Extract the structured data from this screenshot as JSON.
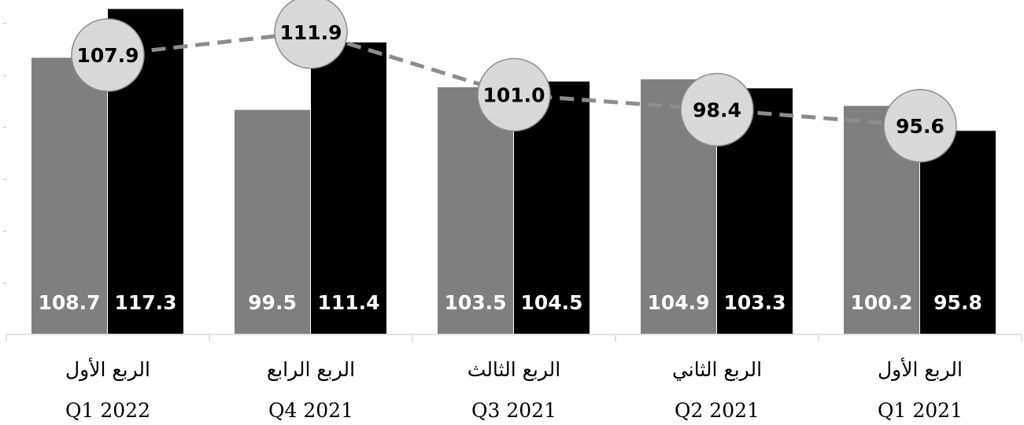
{
  "chart_data": {
    "type": "bar",
    "categories": [
      {
        "ar": "الربع الأول",
        "en": "Q1 2022"
      },
      {
        "ar": "الربع الرابع",
        "en": "Q4 2021"
      },
      {
        "ar": "الربع الثالث",
        "en": "Q3 2021"
      },
      {
        "ar": "الربع الثاني",
        "en": "Q2 2021"
      },
      {
        "ar": "الربع الأول",
        "en": "Q1 2021"
      }
    ],
    "series": [
      {
        "type": "bar",
        "color": "#7f7f7f",
        "values": [
          108.7,
          99.5,
          103.5,
          104.9,
          100.2
        ]
      },
      {
        "type": "bar",
        "color": "#000000",
        "values": [
          117.3,
          111.4,
          104.5,
          103.3,
          95.8
        ]
      },
      {
        "type": "line",
        "color": "#8c8c8c",
        "marker_fill": "#d9d9d9",
        "dashed": true,
        "values": [
          107.9,
          111.9,
          101.0,
          98.4,
          95.6
        ]
      }
    ],
    "data_labels": true,
    "legend": "none",
    "y_axis_ticks_visible": false
  }
}
